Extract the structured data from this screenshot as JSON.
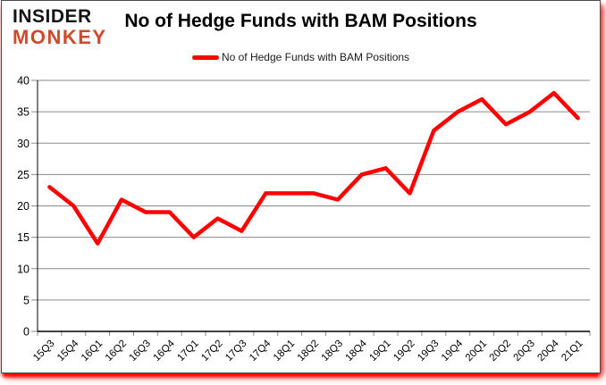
{
  "logo": {
    "line1": "INSIDER",
    "line2": "MONKEY",
    "color": "#ce4a2b"
  },
  "header": {
    "title": "No of Hedge Funds with BAM Positions"
  },
  "legend": {
    "label": "No of Hedge Funds with BAM Positions",
    "swatch_color": "#ff0000"
  },
  "colors": {
    "line": "#ff0000",
    "gridline": "#8a8a8a",
    "axis": "#000000",
    "tick": "#8a8a8a",
    "label": "#000000",
    "frame_border": "#4a4a4a",
    "glow": "#ff0000",
    "background": "#ffffff"
  },
  "chart_data": {
    "type": "line",
    "title": "No of Hedge Funds with BAM Positions",
    "categories": [
      "15Q3",
      "15Q4",
      "16Q1",
      "16Q2",
      "16Q3",
      "16Q4",
      "17Q1",
      "17Q2",
      "17Q3",
      "17Q4",
      "18Q1",
      "18Q2",
      "18Q3",
      "18Q4",
      "19Q1",
      "19Q2",
      "19Q3",
      "19Q4",
      "20Q1",
      "20Q2",
      "20Q3",
      "20Q4",
      "21Q1"
    ],
    "series": [
      {
        "name": "No of Hedge Funds with BAM Positions",
        "color": "#ff0000",
        "values": [
          23,
          20,
          14,
          21,
          19,
          19,
          15,
          18,
          16,
          22,
          22,
          22,
          21,
          25,
          26,
          22,
          32,
          35,
          37,
          33,
          35,
          38,
          34
        ]
      }
    ],
    "xlabel": "",
    "ylabel": "",
    "ylim": [
      0,
      40
    ],
    "ytick_interval": 5,
    "yticks": [
      0,
      5,
      10,
      15,
      20,
      25,
      30,
      35,
      40
    ],
    "grid": true,
    "legend_position": "top",
    "x_label_rotation_deg": -45
  }
}
